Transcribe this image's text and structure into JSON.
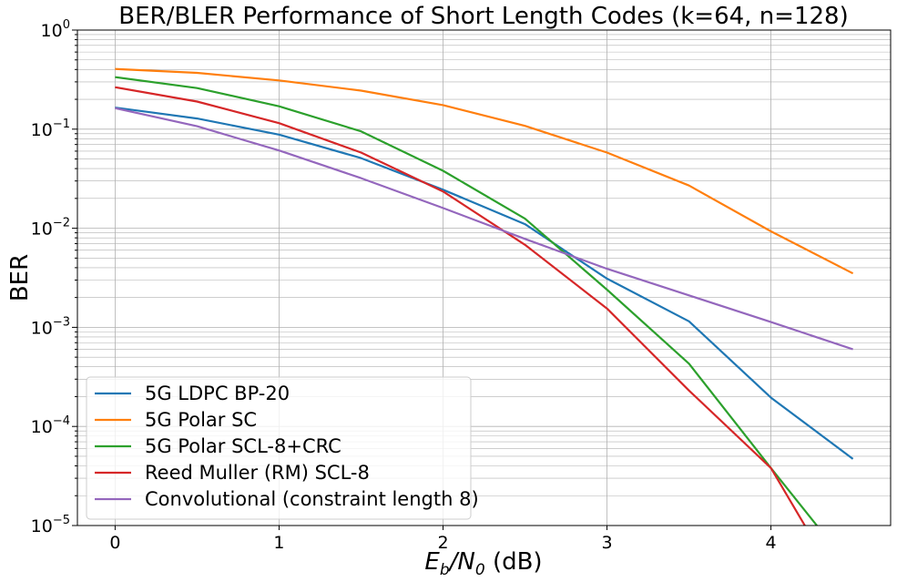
{
  "chart_data": {
    "type": "line",
    "title": "BER/BLER Performance of Short Length Codes (k=64, n=128)",
    "xlabel_main": "E",
    "xlabel_sub1": "b",
    "xlabel_sep": "/N",
    "xlabel_sub2": "0",
    "xlabel_unit": " (dB)",
    "ylabel": "BER",
    "xlim": [
      -0.23,
      4.73
    ],
    "ylim": [
      1e-05,
      1
    ],
    "yscale": "log",
    "grid": true,
    "legend_position": "lower-left",
    "x_ticks": [
      {
        "value": 0,
        "label": "0"
      },
      {
        "value": 1,
        "label": "1"
      },
      {
        "value": 2,
        "label": "2"
      },
      {
        "value": 3,
        "label": "3"
      },
      {
        "value": 4,
        "label": "4"
      }
    ],
    "y_ticks": [
      {
        "value": 1e-05,
        "base": "10",
        "exp": "−5"
      },
      {
        "value": 0.0001,
        "base": "10",
        "exp": "−4"
      },
      {
        "value": 0.001,
        "base": "10",
        "exp": "−3"
      },
      {
        "value": 0.01,
        "base": "10",
        "exp": "−2"
      },
      {
        "value": 0.1,
        "base": "10",
        "exp": "−1"
      },
      {
        "value": 1,
        "base": "10",
        "exp": "0"
      }
    ],
    "series": [
      {
        "name": "5G LDPC BP-20",
        "color": "#1f77b4",
        "x": [
          0,
          0.5,
          1,
          1.5,
          2,
          2.5,
          3,
          3.5,
          4,
          4.5
        ],
        "y": [
          0.165,
          0.128,
          0.088,
          0.051,
          0.0245,
          0.011,
          0.0031,
          0.00115,
          0.000195,
          4.7e-05
        ]
      },
      {
        "name": "5G Polar SC",
        "color": "#ff7f0e",
        "x": [
          0,
          0.5,
          1,
          1.5,
          2,
          2.5,
          3,
          3.5,
          4,
          4.5
        ],
        "y": [
          0.405,
          0.37,
          0.31,
          0.245,
          0.175,
          0.108,
          0.058,
          0.027,
          0.0093,
          0.0035
        ]
      },
      {
        "name": "5G Polar SCL-8+CRC",
        "color": "#2ca02c",
        "x": [
          0,
          0.5,
          1,
          1.5,
          2,
          2.5,
          3,
          3.5,
          4,
          4.5
        ],
        "y": [
          0.335,
          0.26,
          0.17,
          0.095,
          0.038,
          0.0125,
          0.0024,
          0.00043,
          3.8e-05,
          3.5e-06
        ]
      },
      {
        "name": "Reed Muller (RM) SCL-8",
        "color": "#d62728",
        "x": [
          0,
          0.5,
          1,
          1.5,
          2,
          2.5,
          3,
          3.5,
          4,
          4.5
        ],
        "y": [
          0.265,
          0.19,
          0.115,
          0.058,
          0.0235,
          0.0068,
          0.00155,
          0.00023,
          3.8e-05,
          1.5e-06
        ]
      },
      {
        "name": "Convolutional (constraint length 8)",
        "color": "#9467bd",
        "x": [
          0,
          0.5,
          1,
          1.5,
          2,
          2.5,
          3,
          3.5,
          4,
          4.5
        ],
        "y": [
          0.163,
          0.107,
          0.061,
          0.032,
          0.016,
          0.0078,
          0.0039,
          0.0021,
          0.00113,
          0.0006
        ]
      }
    ]
  }
}
